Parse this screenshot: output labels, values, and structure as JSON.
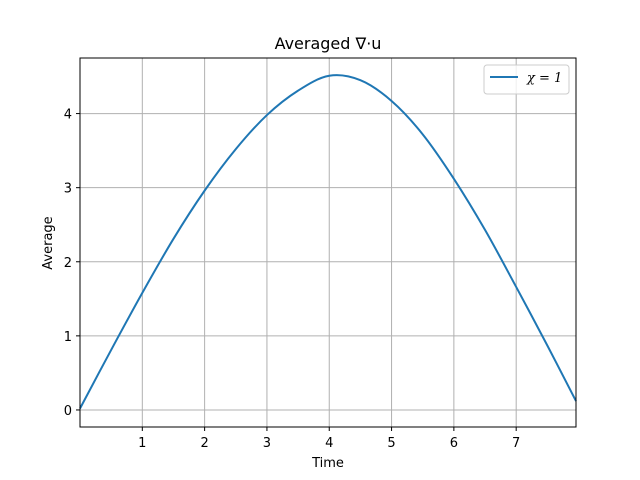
{
  "chart_data": {
    "type": "line",
    "title": "Averaged ∇·u",
    "xlabel": "Time",
    "ylabel": "Average",
    "xlim": [
      0,
      7.96
    ],
    "ylim": [
      -0.23,
      4.75
    ],
    "x_ticks": [
      1,
      2,
      3,
      4,
      5,
      6,
      7
    ],
    "y_ticks": [
      0,
      1,
      2,
      3,
      4
    ],
    "grid": true,
    "legend_position": "top-right",
    "series": [
      {
        "name": "χ = 1",
        "color": "#1f77b4",
        "x": [
          0,
          0.5,
          1,
          1.5,
          2,
          2.5,
          3,
          3.5,
          4,
          4.5,
          5,
          5.5,
          6,
          6.5,
          7,
          7.5,
          7.96
        ],
        "y": [
          0.02,
          0.81,
          1.58,
          2.31,
          2.96,
          3.52,
          3.98,
          4.31,
          4.51,
          4.45,
          4.17,
          3.72,
          3.12,
          2.43,
          1.66,
          0.87,
          0.12
        ]
      }
    ]
  }
}
